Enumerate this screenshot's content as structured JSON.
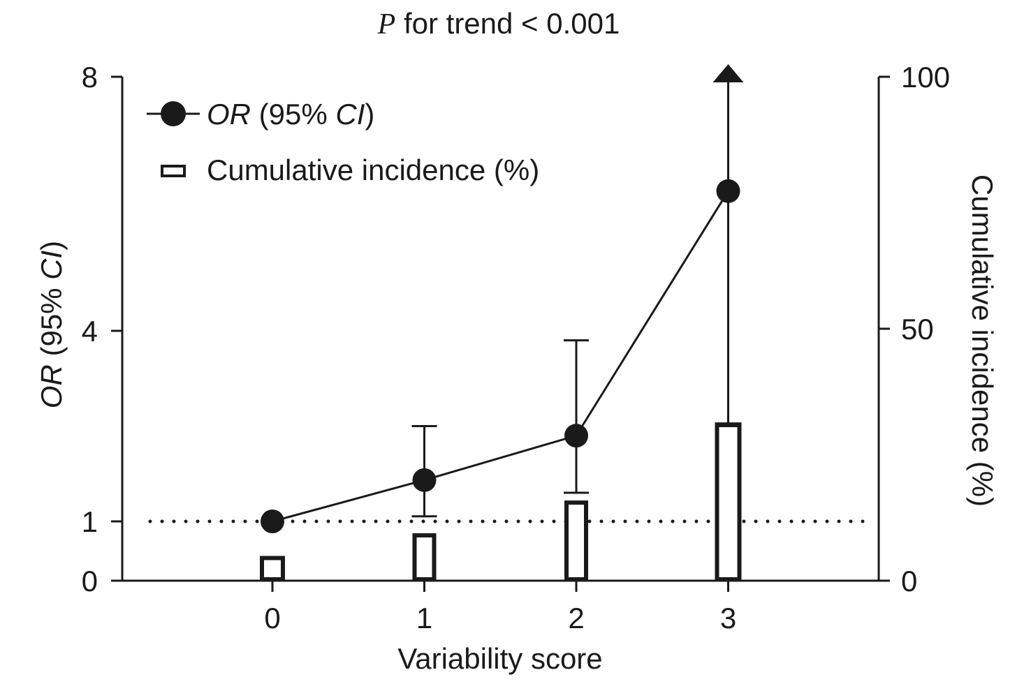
{
  "chart_data": {
    "type": "line",
    "title_prefix": "P",
    "title_rest": " for trend < 0.001",
    "x": [
      0,
      1,
      2,
      3
    ],
    "xticks": [
      "0",
      "1",
      "2",
      "3"
    ],
    "xlabel": "Variability score",
    "ylabel_left_italic": "OR",
    "ylabel_left_rest": " (95% ",
    "ylabel_left_ci": "CI",
    "ylabel_left_close": ")",
    "ylabel_right": "Cumulative incidence (%)",
    "yticks_left": [
      "0",
      "1",
      "4",
      "8"
    ],
    "yticks_right": [
      "0",
      "50",
      "100"
    ],
    "ylim_right": [
      0,
      100
    ],
    "left_axis_scale": "piecewise: 0-1 compressed, 1-8 linear",
    "reference_line": 1,
    "series": [
      {
        "name": "OR (95% CI)",
        "axis": "left",
        "kind": "line-with-markers",
        "values": [
          1.0,
          1.65,
          2.35,
          6.2
        ],
        "ci_lower": [
          null,
          1.08,
          1.45,
          2.5
        ],
        "ci_upper": [
          null,
          2.5,
          3.85,
          8.0
        ],
        "ci_upper_truncated": [
          false,
          false,
          false,
          true
        ]
      },
      {
        "name": "Cumulative incidence (%)",
        "axis": "right",
        "kind": "bar",
        "values": [
          4.5,
          9,
          15.5,
          31
        ]
      }
    ],
    "legend": {
      "position": "top-left",
      "items": [
        {
          "label_italic": "OR",
          "label_rest": " (95% ",
          "label_ci": "CI",
          "label_close": ")"
        },
        {
          "label": "Cumulative incidence (%)"
        }
      ]
    },
    "grid": false,
    "colors": {
      "ink": "#1a1a1a",
      "background": "#ffffff"
    }
  }
}
